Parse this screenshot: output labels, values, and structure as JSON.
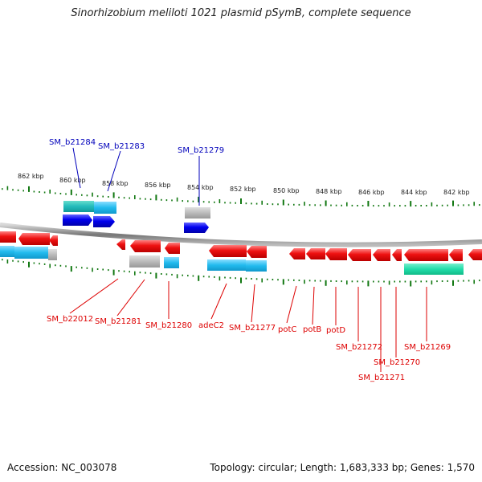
{
  "title": "Sinorhizobium meliloti 1021 plasmid pSymB, complete sequence",
  "footer": {
    "accession": "Accession: NC_003078",
    "topology": "Topology: circular; Length: 1,683,333 bp; Genes: 1,570"
  },
  "colors": {
    "forward_gene": "#0000dd",
    "reverse_gene": "#dd0000",
    "forward_cds": "#33c6ee",
    "reverse_cds": "#33c6ee",
    "rna": "#22dd99",
    "pseudo": "#bbbbbb",
    "tick": "#117711",
    "backbone": "#888888"
  },
  "ticks_upper": [
    "862 kbp",
    "860 kbp",
    "858 kbp",
    "856 kbp",
    "854 kbp",
    "852 kbp",
    "850 kbp",
    "848 kbp",
    "846 kbp",
    "844 kbp",
    "842 kbp"
  ],
  "upper_labels": [
    "SM_b21284",
    "SM_b21283",
    "SM_b21279"
  ],
  "lower_labels": [
    "SM_b22012",
    "SM_b21281",
    "SM_b21280",
    "adeC2",
    "SM_b21277",
    "potC",
    "potB",
    "potD",
    "SM_b21272",
    "SM_b21271",
    "SM_b21270",
    "SM_b21269"
  ]
}
